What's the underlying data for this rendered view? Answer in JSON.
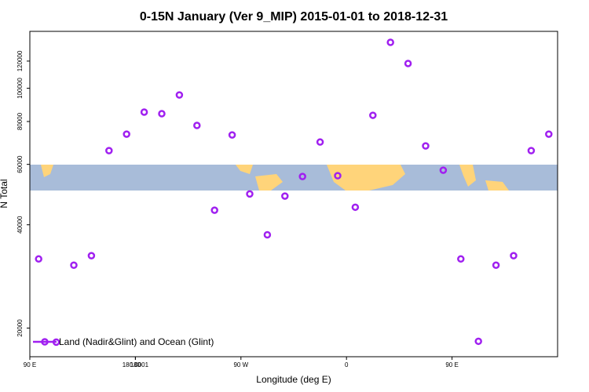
{
  "chart_data": {
    "type": "scatter",
    "title": "0-15N January (Ver 9_MIP)   2015-01-01 to 2018-12-31",
    "x_label": "Longitude (deg E)",
    "y_label": "N Total",
    "log_y": true,
    "xlim": [
      90,
      540
    ],
    "xticks": [
      {
        "value": 90,
        "label": "90 E"
      },
      180,
      {
        "value": 270,
        "label": "90 W"
      },
      {
        "value": 360,
        "label": "0"
      },
      {
        "value": 450,
        "label": "90 E"
      },
      180.0001
    ],
    "ylim": [
      16500,
      146500
    ],
    "yticks": [
      20000,
      40000,
      60000,
      80000,
      100000,
      120000
    ],
    "legend_position": "bottom-left",
    "series": [
      {
        "name": "Land (Nadir&Glint) and Ocean (Glint)",
        "color": "#a020f0",
        "x": [
          97.5,
          112.5,
          127.5,
          142.5,
          157.5,
          172.5,
          187.5,
          202.5,
          217.5,
          232.5,
          247.5,
          262.5,
          277.5,
          292.5,
          307.5,
          322.5,
          337.5,
          352.5,
          367.5,
          382.5,
          397.5,
          412.5,
          427.5,
          442.5,
          457.5,
          472.5,
          487.5,
          502.5,
          517.5,
          532.5
        ],
        "values": [
          31800,
          18200,
          30500,
          32500,
          65800,
          73500,
          85200,
          84300,
          95600,
          77900,
          44100,
          73100,
          49200,
          37400,
          48500,
          55300,
          69700,
          55600,
          45000,
          83400,
          136100,
          118100,
          67900,
          57700,
          31800,
          18300,
          30500,
          32500,
          65800,
          73500
        ]
      }
    ]
  }
}
